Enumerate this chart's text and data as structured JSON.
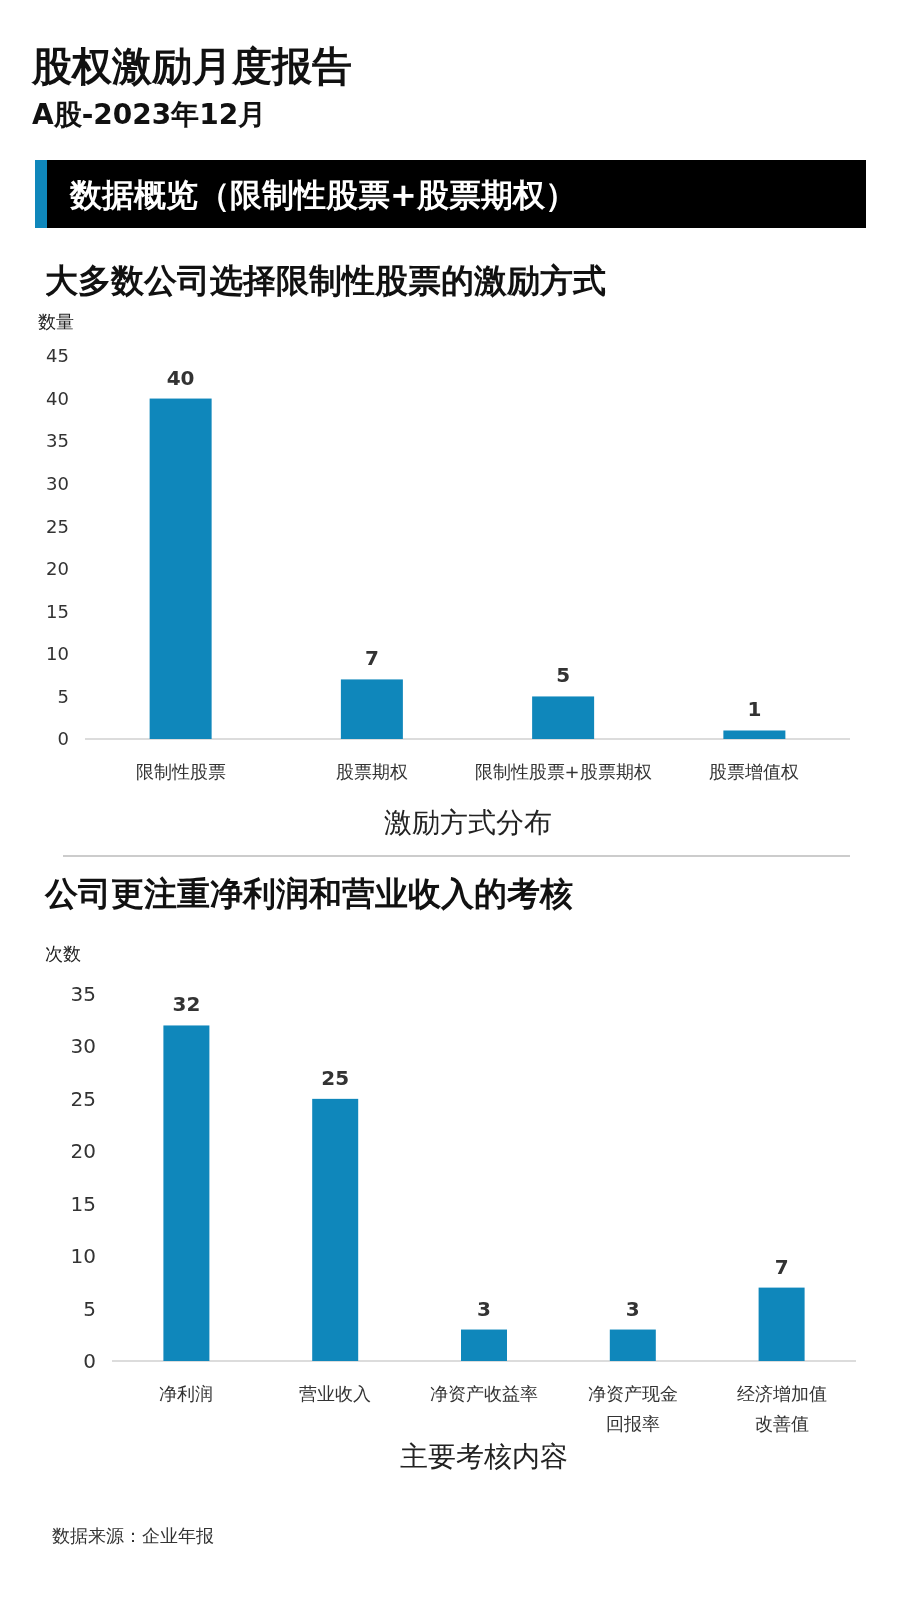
{
  "chart_data": [
    {
      "type": "other",
      "title": "股权激励月度报告",
      "subtitle": "A股-2023年12月",
      "annotations": [
        "数据概览（限制性股票+股票期权）"
      ]
    },
    {
      "type": "bar",
      "title": "大多数公司选择限制性股票的激励方式",
      "ylabel": "数量",
      "xlabel": "激励方式分布",
      "categories": [
        "限制性股票",
        "股票期权",
        "限制性股票+股票期权",
        "股票增值权"
      ],
      "values": [
        40,
        7,
        5,
        1
      ],
      "color": "#0f87bb",
      "ylim": [
        0,
        45
      ],
      "yticks": [
        0,
        5,
        10,
        15,
        20,
        25,
        30,
        35,
        40,
        45
      ],
      "data_labels": true,
      "grid": false
    },
    {
      "type": "bar",
      "title": "公司更注重净利润和营业收入的考核",
      "ylabel": "次数",
      "xlabel": "主要考核内容",
      "categories": [
        "净利润",
        "营业收入",
        "净资产收益率",
        "净资产现金回报率",
        "经济增加值改善值"
      ],
      "values": [
        32,
        25,
        3,
        3,
        7
      ],
      "color": "#0f87bb",
      "ylim": [
        0,
        35
      ],
      "yticks": [
        0,
        5,
        10,
        15,
        20,
        25,
        30,
        35
      ],
      "data_labels": true,
      "grid": false,
      "annotations": [
        "数据来源：企业年报"
      ]
    }
  ]
}
